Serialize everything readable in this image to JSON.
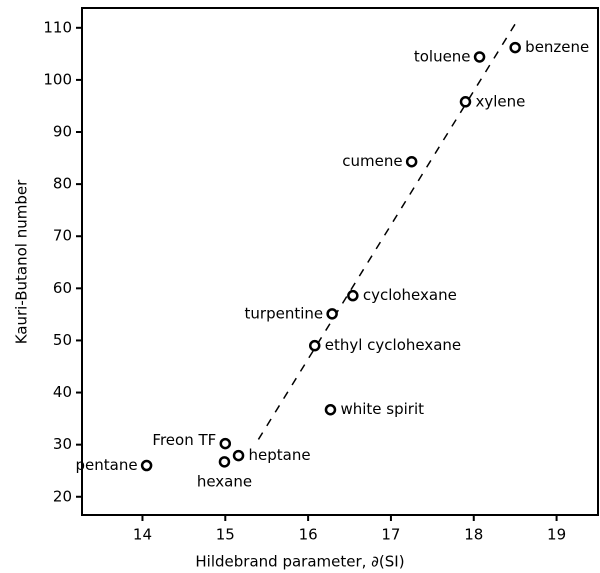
{
  "chart_data": {
    "type": "scatter",
    "x_label": "Hildebrand parameter, ∂(SI)",
    "y_label": "Kauri-Butanol number",
    "labels": [
      "toluene",
      "benzene",
      "xylene",
      "cumene",
      "cyclohexane",
      "turpentine",
      "ethyl cyclohexane",
      "white spirit",
      "Freon TF",
      "heptane",
      "hexane",
      "pentane"
    ],
    "x": [
      18.07,
      18.5,
      17.9,
      17.25,
      16.54,
      16.29,
      16.08,
      16.27,
      15.0,
      15.16,
      14.99,
      14.05
    ],
    "values": [
      104.4,
      106.2,
      95.8,
      84.3,
      58.6,
      55.1,
      49,
      36.7,
      30.2,
      27.9,
      26.7,
      26
    ],
    "color": "#000000",
    "trend_line": {
      "x": [
        15.4,
        18.53
      ],
      "y": [
        31,
        111.5
      ]
    },
    "xlim": [
      13.27,
      19.5
    ],
    "ylim": [
      16.5,
      113.8
    ],
    "xticks": [
      14,
      15,
      16,
      17,
      18,
      19
    ],
    "yticks": [
      20,
      30,
      40,
      50,
      60,
      70,
      80,
      90,
      100,
      110
    ]
  }
}
